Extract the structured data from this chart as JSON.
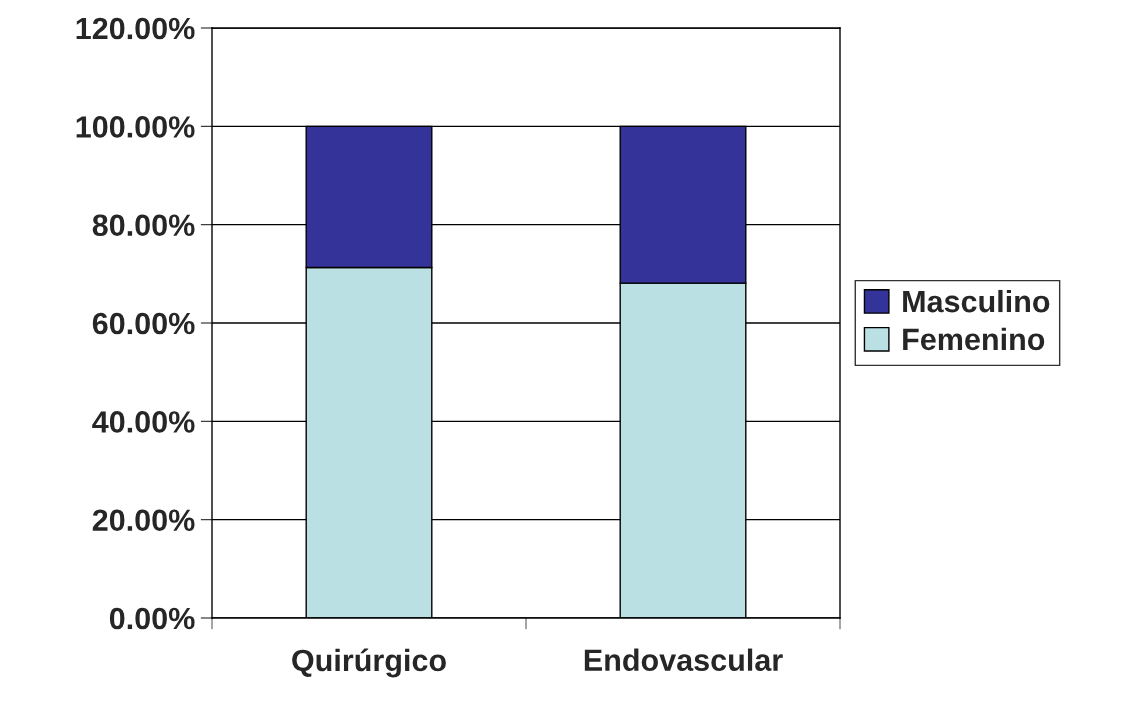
{
  "chart_data": {
    "type": "bar",
    "stacked": true,
    "categories": [
      "Quirúrgico",
      "Endovascular"
    ],
    "series": [
      {
        "name": "Femenino",
        "color": "#bbe0e3",
        "values": [
          71.3,
          68.1
        ]
      },
      {
        "name": "Masculino",
        "color": "#333399",
        "values": [
          28.7,
          31.9
        ]
      }
    ],
    "ylim": [
      0,
      120
    ],
    "yticks": [
      {
        "value": 0,
        "label": "0.00%"
      },
      {
        "value": 20,
        "label": "20.00%"
      },
      {
        "value": 40,
        "label": "40.00%"
      },
      {
        "value": 60,
        "label": "60.00%"
      },
      {
        "value": 80,
        "label": "80.00%"
      },
      {
        "value": 100,
        "label": "100.00%"
      },
      {
        "value": 120,
        "label": "120.00%"
      }
    ],
    "grid": "y",
    "legend": "right"
  }
}
